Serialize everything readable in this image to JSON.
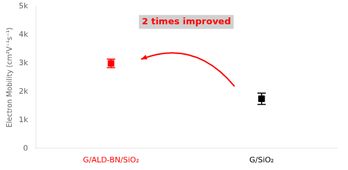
{
  "chart_data": {
    "type": "scatter",
    "categories": [
      "G/ALD-BN/SiO₂",
      "G/SiO₂"
    ],
    "values": [
      3000,
      1750
    ],
    "errors": [
      150,
      200
    ],
    "colors": [
      "red",
      "black"
    ],
    "marker": "square",
    "ylabel": "Electron Mobility (cm²V⁻¹s⁻¹)",
    "ylim": [
      0,
      5000
    ],
    "yticks": [
      0,
      {
        "value": 1000,
        "label": "1k"
      },
      {
        "value": 2000,
        "label": "2k"
      },
      {
        "value": 3000,
        "label": "3k"
      },
      {
        "value": 4000,
        "label": "4k"
      },
      {
        "value": 5000,
        "label": "5k"
      }
    ],
    "annotations": [
      {
        "text": "2 times improved",
        "color": "red"
      }
    ],
    "grid": false
  }
}
